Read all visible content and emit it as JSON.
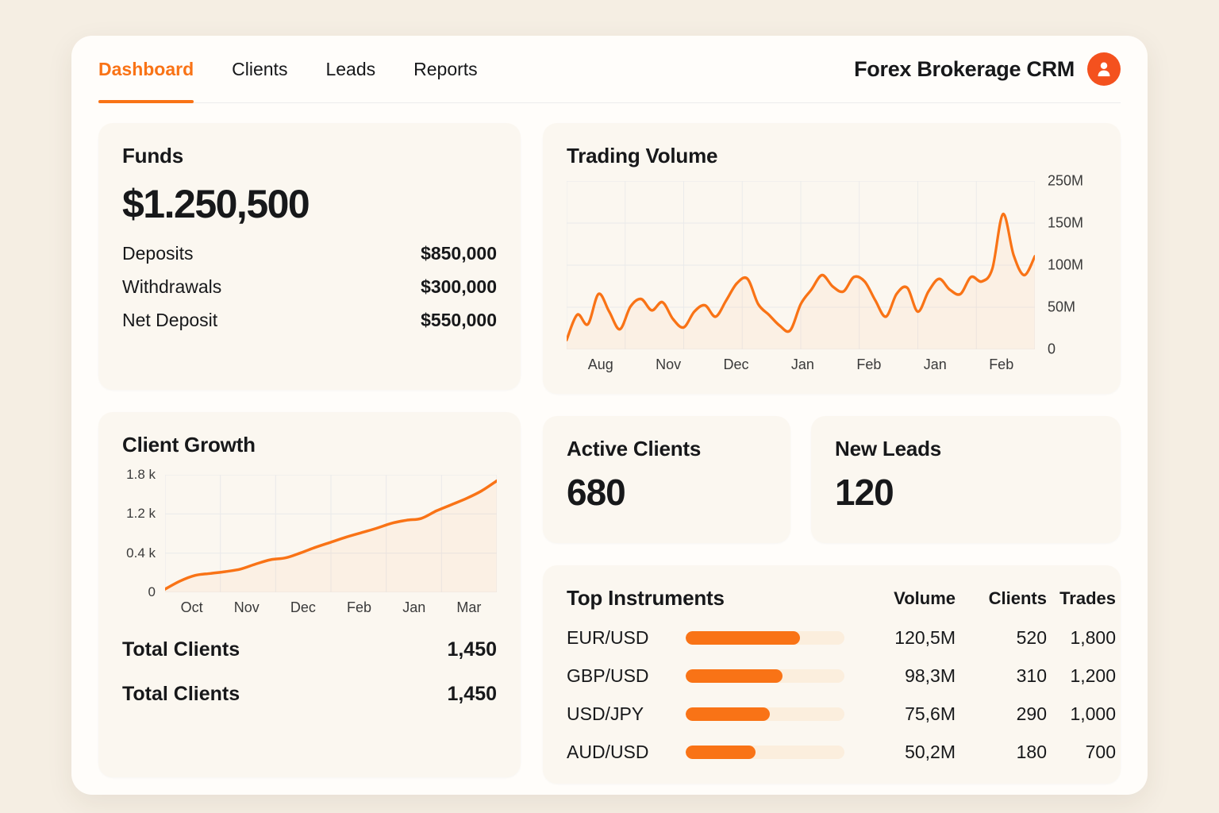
{
  "theme": {
    "accent": "#f97316",
    "avatar_bg": "#f4511e",
    "bar_track": "#fbeedd",
    "card_bg": "#fbf7f0",
    "page_bg": "#f5eee3",
    "grid_line": "#eaeaea"
  },
  "nav": {
    "app_title": "Forex Brokerage CRM",
    "avatar_icon": "user-icon",
    "items": [
      {
        "label": "Dashboard",
        "active": true
      },
      {
        "label": "Clients",
        "active": false
      },
      {
        "label": "Leads",
        "active": false
      },
      {
        "label": "Reports",
        "active": false
      }
    ]
  },
  "funds": {
    "title": "Funds",
    "total": "$1.250,500",
    "rows": [
      {
        "label": "Deposits",
        "value": "$850,000"
      },
      {
        "label": "Withdrawals",
        "value": "$300,000"
      },
      {
        "label": "Net Deposit",
        "value": "$550,000"
      }
    ]
  },
  "active_clients": {
    "title": "Active Clients",
    "value": "680"
  },
  "new_leads": {
    "title": "New Leads",
    "value": "120"
  },
  "client_growth_stats": [
    {
      "label": "Total Clients",
      "value": "1,450"
    },
    {
      "label": "Total Clients",
      "value": "1,450"
    }
  ],
  "top_instruments": {
    "title": "Top Instruments",
    "columns": [
      "Volume",
      "Clients",
      "Trades"
    ],
    "rows": [
      {
        "pair": "EUR/USD",
        "bar_pct": 72,
        "volume": "120,5M",
        "clients": "520",
        "trades": "1,800"
      },
      {
        "pair": "GBP/USD",
        "bar_pct": 61,
        "volume": "98,3M",
        "clients": "310",
        "trades": "1,200"
      },
      {
        "pair": "USD/JPY",
        "bar_pct": 53,
        "volume": "75,6M",
        "clients": "290",
        "trades": "1,000"
      },
      {
        "pair": "AUD/USD",
        "bar_pct": 44,
        "volume": "50,2M",
        "clients": "180",
        "trades": "700"
      }
    ]
  },
  "chart_data": [
    {
      "id": "trading_volume",
      "type": "line",
      "title": "Trading Volume",
      "x_tick_labels": [
        "Aug",
        "Nov",
        "Dec",
        "Jan",
        "Feb",
        "Jan",
        "Feb"
      ],
      "y_tick_labels": [
        "250M",
        "150M",
        "100M",
        "50M",
        "0"
      ],
      "ylim": [
        0,
        250
      ],
      "values_unit": "M",
      "legend": false,
      "grid": true,
      "values": [
        15,
        55,
        40,
        88,
        60,
        32,
        68,
        80,
        62,
        75,
        48,
        35,
        60,
        70,
        52,
        78,
        105,
        112,
        72,
        55,
        38,
        30,
        72,
        95,
        118,
        100,
        92,
        115,
        108,
        78,
        52,
        88,
        98,
        60,
        92,
        112,
        95,
        88,
        115,
        108,
        128,
        215,
        150,
        118,
        148
      ]
    },
    {
      "id": "client_growth",
      "type": "line",
      "title": "Client Growth",
      "x_tick_labels": [
        "Oct",
        "Nov",
        "Dec",
        "Feb",
        "Jan",
        "Mar"
      ],
      "y_tick_labels": [
        "1.8 k",
        "1.2 k",
        "0.4 k",
        "0"
      ],
      "ylim": [
        0,
        1.8
      ],
      "values_unit": "k",
      "legend": false,
      "grid": true,
      "values": [
        0.05,
        0.18,
        0.27,
        0.3,
        0.33,
        0.37,
        0.45,
        0.52,
        0.55,
        0.63,
        0.72,
        0.8,
        0.88,
        0.95,
        1.02,
        1.1,
        1.15,
        1.18,
        1.3,
        1.4,
        1.5,
        1.62,
        1.78
      ]
    }
  ]
}
